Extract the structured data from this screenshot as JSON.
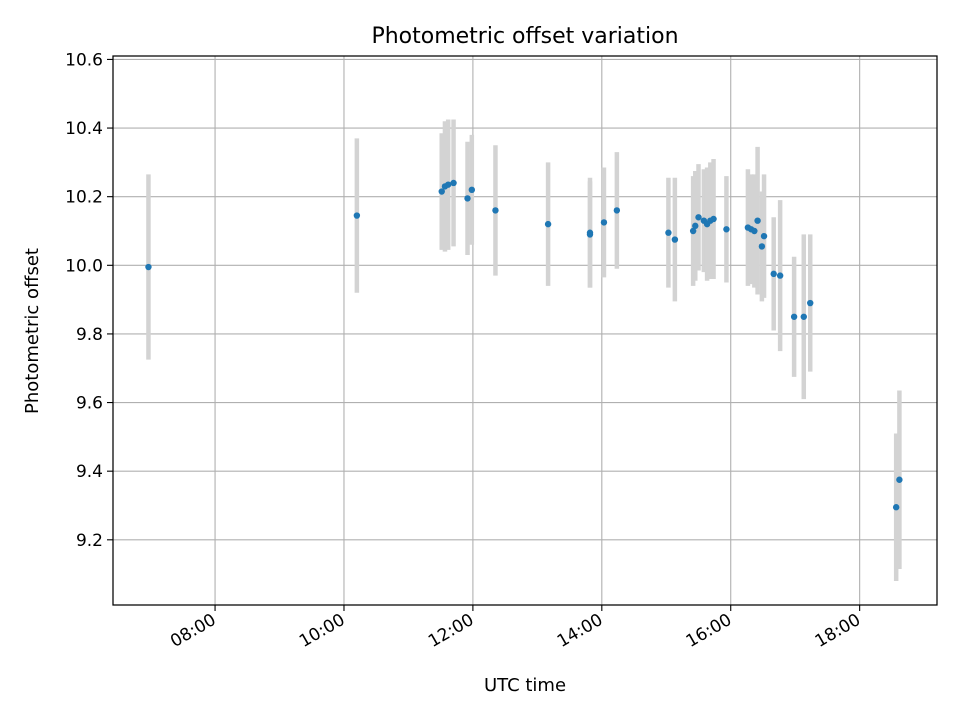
{
  "chart_data": {
    "type": "scatter",
    "title": "Photometric offset variation",
    "xlabel": "UTC time",
    "ylabel": "Photometric offset",
    "x_ticks": [
      "08:00",
      "10:00",
      "12:00",
      "14:00",
      "16:00",
      "18:00"
    ],
    "y_ticks": [
      "9.2",
      "9.4",
      "9.6",
      "9.8",
      "10.0",
      "10.2",
      "10.4",
      "10.6"
    ],
    "xlim": [
      "06:25",
      "19:12"
    ],
    "ylim": [
      9.01,
      10.61
    ],
    "grid": true,
    "colors": {
      "point": "#1f77b4",
      "errorbar": "#d3d3d3",
      "grid": "#b0b0b0"
    },
    "points": [
      {
        "x": "06:58",
        "y": 9.995,
        "err": 0.27
      },
      {
        "x": "10:12",
        "y": 10.145,
        "err": 0.225
      },
      {
        "x": "11:31",
        "y": 10.215,
        "err": 0.17
      },
      {
        "x": "11:34",
        "y": 10.23,
        "err": 0.19
      },
      {
        "x": "11:37",
        "y": 10.235,
        "err": 0.19
      },
      {
        "x": "11:42",
        "y": 10.24,
        "err": 0.185
      },
      {
        "x": "11:55",
        "y": 10.195,
        "err": 0.165
      },
      {
        "x": "11:59",
        "y": 10.22,
        "err": 0.16
      },
      {
        "x": "12:21",
        "y": 10.16,
        "err": 0.19
      },
      {
        "x": "13:10",
        "y": 10.12,
        "err": 0.18
      },
      {
        "x": "13:49",
        "y": 10.09,
        "err": 0.155
      },
      {
        "x": "13:49",
        "y": 10.095,
        "err": 0.16
      },
      {
        "x": "14:02",
        "y": 10.125,
        "err": 0.16
      },
      {
        "x": "14:14",
        "y": 10.16,
        "err": 0.17
      },
      {
        "x": "15:02",
        "y": 10.095,
        "err": 0.16
      },
      {
        "x": "15:08",
        "y": 10.075,
        "err": 0.18
      },
      {
        "x": "15:25",
        "y": 10.1,
        "err": 0.16
      },
      {
        "x": "15:27",
        "y": 10.115,
        "err": 0.16
      },
      {
        "x": "15:30",
        "y": 10.14,
        "err": 0.155
      },
      {
        "x": "15:35",
        "y": 10.13,
        "err": 0.15
      },
      {
        "x": "15:38",
        "y": 10.12,
        "err": 0.165
      },
      {
        "x": "15:41",
        "y": 10.13,
        "err": 0.17
      },
      {
        "x": "15:44",
        "y": 10.135,
        "err": 0.175
      },
      {
        "x": "15:56",
        "y": 10.105,
        "err": 0.155
      },
      {
        "x": "16:16",
        "y": 10.11,
        "err": 0.17
      },
      {
        "x": "16:19",
        "y": 10.105,
        "err": 0.16
      },
      {
        "x": "16:22",
        "y": 10.1,
        "err": 0.165
      },
      {
        "x": "16:25",
        "y": 10.13,
        "err": 0.215
      },
      {
        "x": "16:29",
        "y": 10.055,
        "err": 0.16
      },
      {
        "x": "16:31",
        "y": 10.085,
        "err": 0.18
      },
      {
        "x": "16:40",
        "y": 9.975,
        "err": 0.165
      },
      {
        "x": "16:46",
        "y": 9.97,
        "err": 0.22
      },
      {
        "x": "16:59",
        "y": 9.85,
        "err": 0.175
      },
      {
        "x": "17:08",
        "y": 9.85,
        "err": 0.24
      },
      {
        "x": "17:14",
        "y": 9.89,
        "err": 0.2
      },
      {
        "x": "18:34",
        "y": 9.295,
        "err": 0.215
      },
      {
        "x": "18:37",
        "y": 9.375,
        "err": 0.26
      }
    ]
  }
}
